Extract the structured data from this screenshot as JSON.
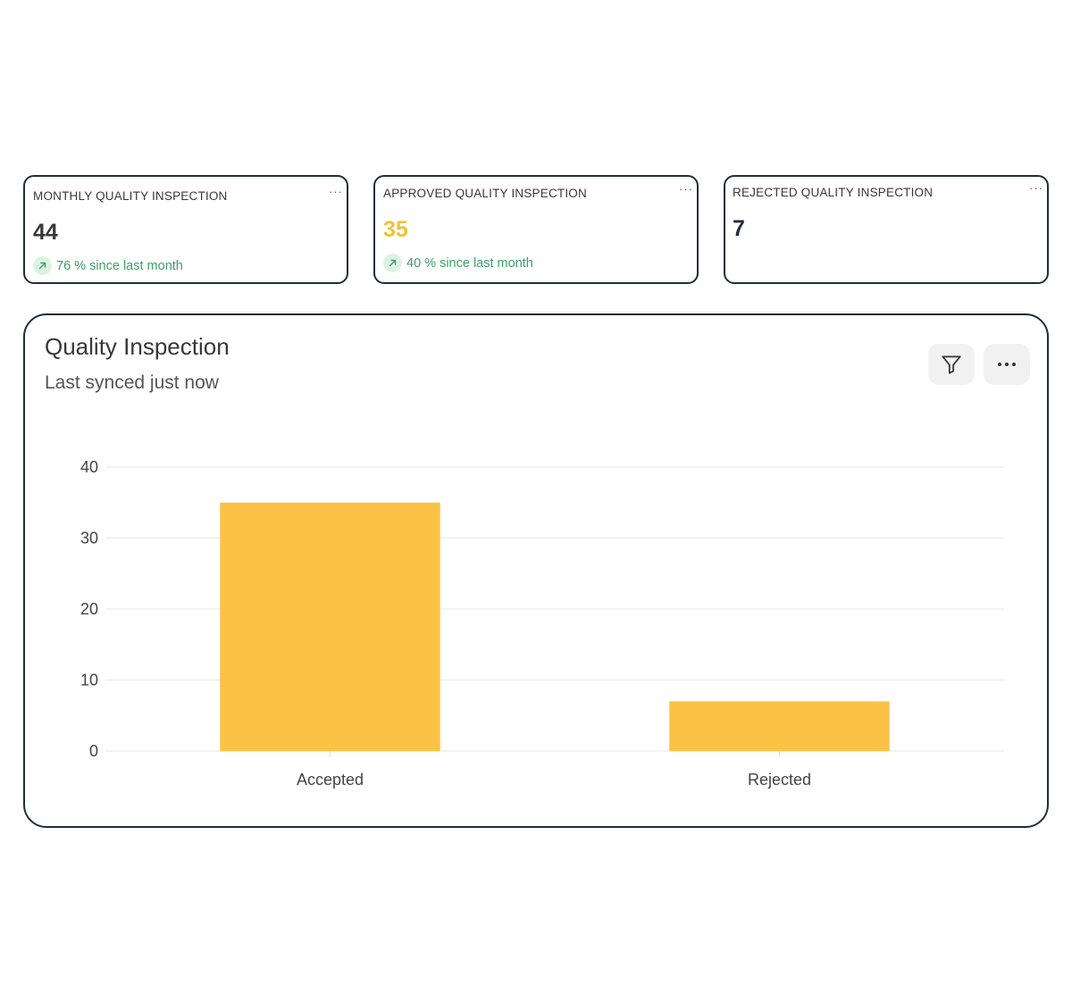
{
  "cards": [
    {
      "title": "MONTHLY QUALITY INSPECTION",
      "menu": "···",
      "value": "44",
      "value_color": "#383838",
      "trend_icon": "arrow-up-right-icon",
      "trend_text": "76 % since last month"
    },
    {
      "title": "APPROVED QUALITY INSPECTION",
      "menu": "···",
      "value": "35",
      "value_color": "#f0c239",
      "trend_icon": "arrow-up-right-icon",
      "trend_text": "40 % since last month"
    },
    {
      "title": "REJECTED QUALITY INSPECTION",
      "menu": "···",
      "value": "7",
      "value_color": "#1f2d3d"
    }
  ],
  "chart_panel": {
    "title": "Quality Inspection",
    "subtitle": "Last synced just now",
    "filter_icon": "filter-icon",
    "more_icon": "more-horizontal-icon"
  },
  "chart_data": {
    "type": "bar",
    "categories": [
      "Accepted",
      "Rejected"
    ],
    "values": [
      35,
      7
    ],
    "ylim": [
      0,
      40
    ],
    "yticks": [
      0,
      10,
      20,
      30,
      40
    ],
    "grid": true,
    "bar_color": "#fbc246",
    "title": "",
    "xlabel": "",
    "ylabel": ""
  }
}
